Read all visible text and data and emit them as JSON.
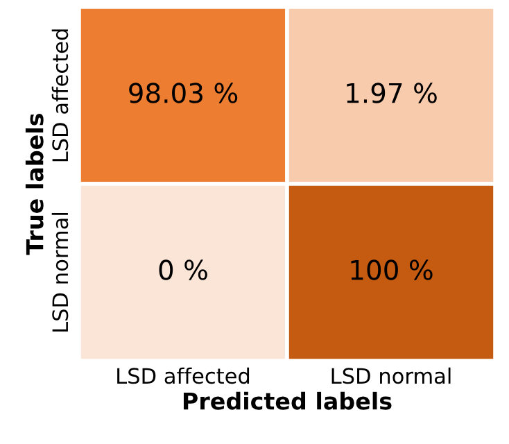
{
  "chart_data": {
    "type": "heatmap",
    "xlabel": "Predicted labels",
    "ylabel": "True labels",
    "categories": [
      "LSD affected",
      "LSD normal"
    ],
    "y_categories": [
      "LSD affected",
      "LSD normal"
    ],
    "cells": [
      [
        98.03,
        1.97
      ],
      [
        0,
        100
      ]
    ],
    "cell_labels": [
      [
        "98.03 %",
        "1.97 %"
      ],
      [
        "0 %",
        "100 %"
      ]
    ],
    "colors": [
      "#fbe5d6",
      "#f8cbad",
      "#ed7d31",
      "#c55a11"
    ]
  }
}
